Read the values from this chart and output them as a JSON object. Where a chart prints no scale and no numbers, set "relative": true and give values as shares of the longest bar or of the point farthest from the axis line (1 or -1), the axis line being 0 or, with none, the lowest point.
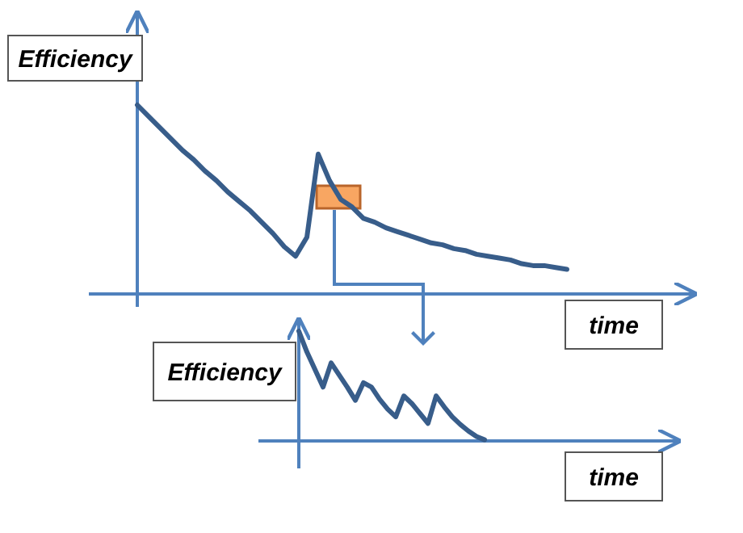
{
  "chart_data": [
    {
      "type": "line",
      "xlabel": "time",
      "ylabel": "Efficiency",
      "relative": true,
      "tick_labels": false,
      "categories": [
        null,
        null,
        null,
        null,
        null,
        null,
        null,
        null,
        null,
        null,
        null,
        null,
        null,
        null,
        null,
        null,
        null,
        null,
        null,
        null,
        null,
        null,
        null,
        null,
        null,
        null,
        null,
        null,
        null,
        null,
        null,
        null,
        null,
        null,
        null,
        null,
        null,
        null,
        null
      ],
      "series": [
        {
          "color": "#385d8a",
          "values": [
            1.0,
            0.94,
            0.88,
            0.82,
            0.76,
            0.71,
            0.65,
            0.6,
            0.54,
            0.49,
            0.44,
            0.38,
            0.32,
            0.25,
            0.2,
            0.3,
            0.74,
            0.6,
            0.5,
            0.46,
            0.4,
            0.38,
            0.35,
            0.33,
            0.31,
            0.29,
            0.27,
            0.26,
            0.24,
            0.23,
            0.21,
            0.2,
            0.19,
            0.18,
            0.16,
            0.15,
            0.15,
            0.14,
            0.13
          ]
        }
      ]
    },
    {
      "type": "line",
      "xlabel": "time",
      "ylabel": "Efficiency",
      "relative": true,
      "tick_labels": false,
      "categories": [
        null,
        null,
        null,
        null,
        null,
        null,
        null,
        null,
        null,
        null,
        null,
        null,
        null,
        null,
        null,
        null,
        null,
        null,
        null,
        null,
        null,
        null,
        null,
        null
      ],
      "series": [
        {
          "color": "#385d8a",
          "values": [
            1.0,
            0.81,
            0.65,
            0.49,
            0.71,
            0.6,
            0.49,
            0.37,
            0.53,
            0.49,
            0.38,
            0.29,
            0.22,
            0.41,
            0.34,
            0.25,
            0.16,
            0.41,
            0.31,
            0.22,
            0.15,
            0.09,
            0.04,
            0.01
          ]
        }
      ]
    }
  ]
}
